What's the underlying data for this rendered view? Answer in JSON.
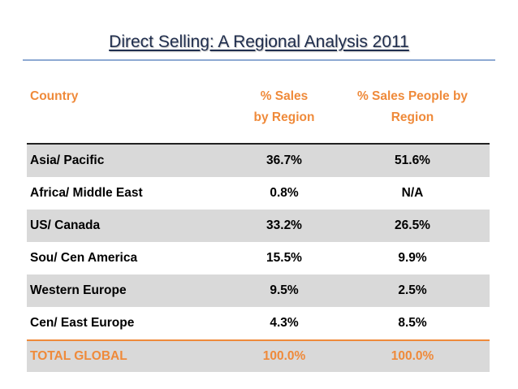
{
  "slide": {
    "title": "Direct Selling:  A Regional Analysis  2011"
  },
  "table": {
    "headers": {
      "country": "Country",
      "sales_line1": "% Sales",
      "sales_line2": "by Region",
      "people_line1": "% Sales People by",
      "people_line2": "Region"
    },
    "rows": [
      {
        "country": "Asia/ Pacific",
        "sales": "36.7%",
        "people": "51.6%"
      },
      {
        "country": "Africa/ Middle East",
        "sales": "0.8%",
        "people": "N/A"
      },
      {
        "country": "US/ Canada",
        "sales": "33.2%",
        "people": "26.5%"
      },
      {
        "country": "Sou/ Cen America",
        "sales": "15.5%",
        "people": "9.9%"
      },
      {
        "country": "Western Europe",
        "sales": "9.5%",
        "people": "2.5%"
      },
      {
        "country": "Cen/ East Europe",
        "sales": "4.3%",
        "people": "8.5%"
      }
    ],
    "total": {
      "country": "TOTAL GLOBAL",
      "sales": "100.0%",
      "people": "100.0%"
    }
  },
  "colors": {
    "header_text": "#ef8a3a",
    "title_text": "#1f2d4d",
    "title_rule": "#8eaad3",
    "row_shade": "#d9d9d9"
  }
}
